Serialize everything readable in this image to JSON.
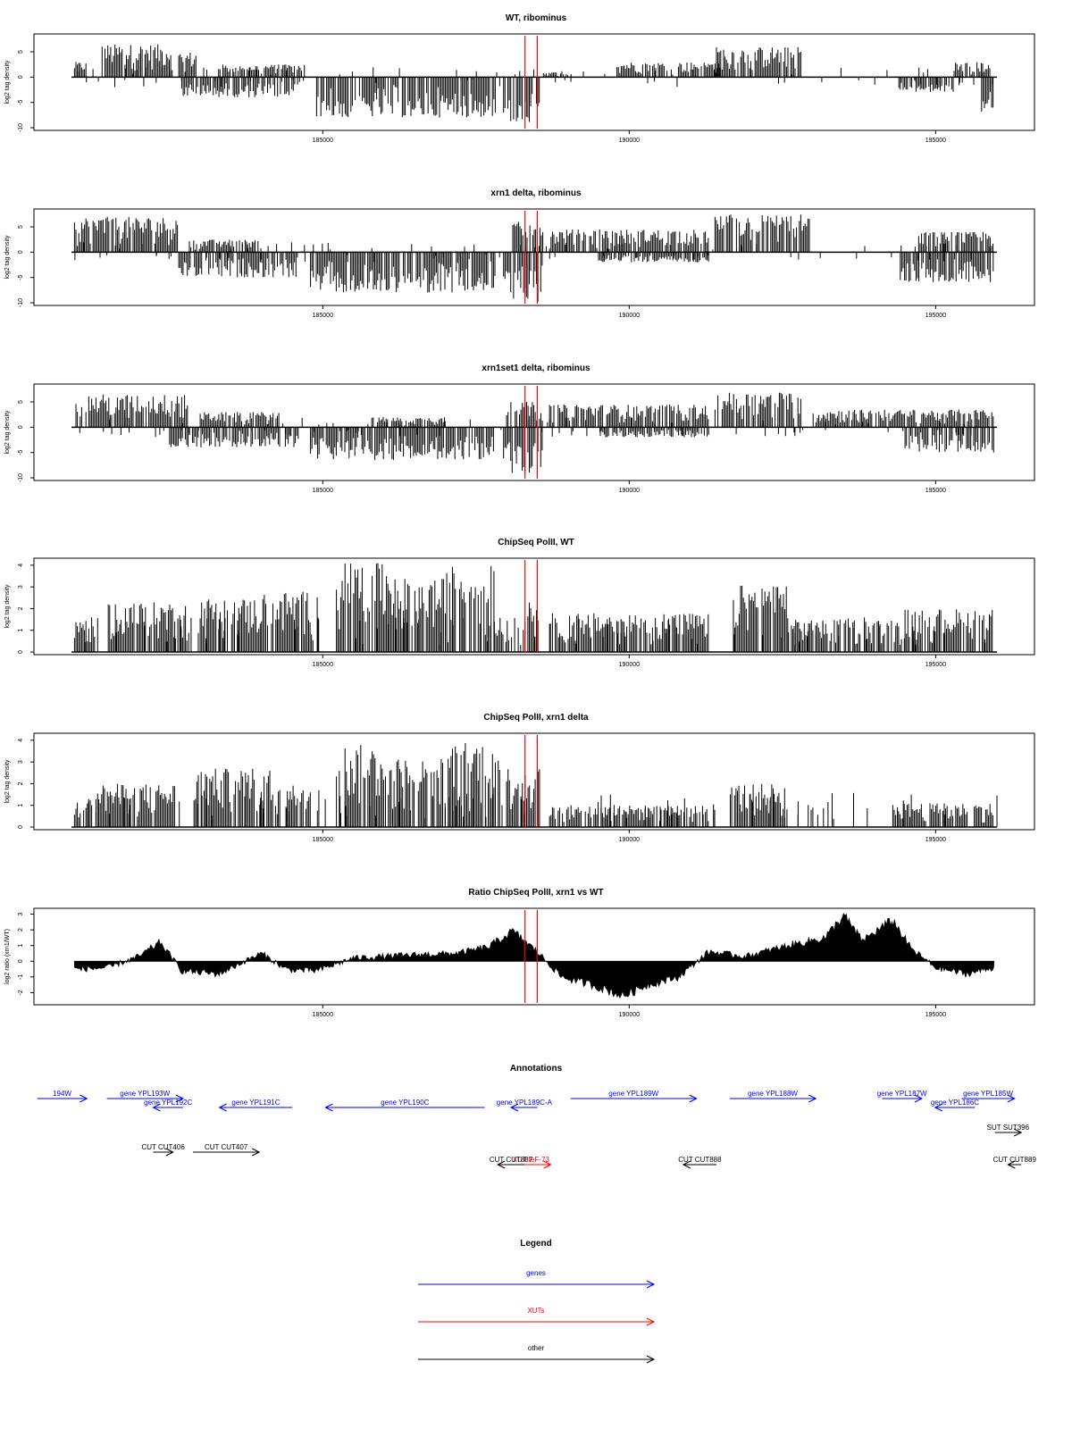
{
  "chart_data": [
    {
      "type": "bar",
      "title": "WT, ribominus",
      "ylabel": "log2 tag density",
      "xlabel": "",
      "xlim": [
        180900,
        196000
      ],
      "ylim": [
        -10,
        8
      ],
      "x_ticks": [
        185000,
        190000,
        195000
      ],
      "y_ticks": [
        -10,
        -5,
        0,
        5
      ],
      "grid": false,
      "markers": [
        188300,
        188500
      ],
      "regions": [
        {
          "from": 180950,
          "to": 181150,
          "peak": 3
        },
        {
          "from": 181400,
          "to": 182550,
          "peak": 6.5
        },
        {
          "from": 182650,
          "to": 182950,
          "peak": 5
        },
        {
          "from": 183300,
          "to": 184700,
          "peak": 2.5
        },
        {
          "from": 182700,
          "to": 184600,
          "peak": -4
        },
        {
          "from": 184900,
          "to": 187850,
          "peak": -8
        },
        {
          "from": 187950,
          "to": 188550,
          "peak": -9
        },
        {
          "from": 188600,
          "to": 189000,
          "peak": 1
        },
        {
          "from": 189800,
          "to": 191500,
          "peak": 3
        },
        {
          "from": 191400,
          "to": 192800,
          "peak": 6
        },
        {
          "from": 194400,
          "to": 195300,
          "peak": -3
        },
        {
          "from": 195300,
          "to": 195900,
          "peak": 3
        },
        {
          "from": 195750,
          "to": 195950,
          "peak": -7
        }
      ]
    },
    {
      "type": "bar",
      "title": "xrn1 delta, ribominus",
      "ylabel": "log2 tag density",
      "xlabel": "",
      "xlim": [
        180900,
        196000
      ],
      "ylim": [
        -10,
        8
      ],
      "x_ticks": [
        185000,
        190000,
        195000
      ],
      "y_ticks": [
        -10,
        -5,
        0,
        5
      ],
      "grid": false,
      "markers": [
        188300,
        188500
      ],
      "regions": [
        {
          "from": 180950,
          "to": 182650,
          "peak": 7
        },
        {
          "from": 182650,
          "to": 184600,
          "peak": -5
        },
        {
          "from": 182800,
          "to": 184000,
          "peak": 2.5
        },
        {
          "from": 184800,
          "to": 187850,
          "peak": -8
        },
        {
          "from": 187950,
          "to": 188600,
          "peak": -10
        },
        {
          "from": 188100,
          "to": 188600,
          "peak": 6
        },
        {
          "from": 188700,
          "to": 191300,
          "peak": 4.5
        },
        {
          "from": 189500,
          "to": 191300,
          "peak": -2
        },
        {
          "from": 191400,
          "to": 192950,
          "peak": 7.5
        },
        {
          "from": 194400,
          "to": 195950,
          "peak": -6
        },
        {
          "from": 194700,
          "to": 195950,
          "peak": 4
        }
      ]
    },
    {
      "type": "bar",
      "title": "xrn1set1 delta, ribominus",
      "ylabel": "log2 tag density",
      "xlabel": "",
      "xlim": [
        180900,
        196000
      ],
      "ylim": [
        -10,
        8
      ],
      "x_ticks": [
        185000,
        190000,
        195000
      ],
      "y_ticks": [
        -10,
        -5,
        0,
        5
      ],
      "grid": false,
      "markers": [
        188300,
        188500
      ],
      "regions": [
        {
          "from": 180950,
          "to": 182800,
          "peak": 6.5
        },
        {
          "from": 182500,
          "to": 184600,
          "peak": -4
        },
        {
          "from": 183000,
          "to": 184300,
          "peak": 3
        },
        {
          "from": 184800,
          "to": 187800,
          "peak": -6.5
        },
        {
          "from": 185800,
          "to": 187000,
          "peak": 2
        },
        {
          "from": 187950,
          "to": 188600,
          "peak": -9.5
        },
        {
          "from": 188000,
          "to": 188600,
          "peak": 5
        },
        {
          "from": 188700,
          "to": 191300,
          "peak": 4.5
        },
        {
          "from": 189500,
          "to": 191300,
          "peak": -2
        },
        {
          "from": 191400,
          "to": 192800,
          "peak": 7
        },
        {
          "from": 193000,
          "to": 195950,
          "peak": 3.5
        },
        {
          "from": 194500,
          "to": 195950,
          "peak": -5
        }
      ]
    },
    {
      "type": "bar",
      "title": "ChipSeq PolII, WT",
      "ylabel": "log2 tag density",
      "xlabel": "",
      "xlim": [
        180900,
        196000
      ],
      "ylim": [
        0,
        4.2
      ],
      "x_ticks": [
        185000,
        190000,
        195000
      ],
      "y_ticks": [
        0,
        1,
        2,
        3,
        4
      ],
      "grid": false,
      "markers": [
        188300,
        188500
      ],
      "regions": [
        {
          "from": 180950,
          "to": 181300,
          "peak": 1.6
        },
        {
          "from": 181500,
          "to": 182800,
          "peak": 2.3
        },
        {
          "from": 183000,
          "to": 184000,
          "peak": 2.5
        },
        {
          "from": 184000,
          "to": 184950,
          "peak": 2.8
        },
        {
          "from": 185200,
          "to": 186200,
          "peak": 4.1
        },
        {
          "from": 186200,
          "to": 187000,
          "peak": 3.4
        },
        {
          "from": 187000,
          "to": 187800,
          "peak": 4.0
        },
        {
          "from": 187800,
          "to": 188100,
          "peak": 1.6
        },
        {
          "from": 188300,
          "to": 188550,
          "peak": 2.6
        },
        {
          "from": 188700,
          "to": 191300,
          "peak": 1.8
        },
        {
          "from": 191700,
          "to": 192600,
          "peak": 3.1
        },
        {
          "from": 192600,
          "to": 194500,
          "peak": 1.5
        },
        {
          "from": 194500,
          "to": 195950,
          "peak": 2.0
        }
      ]
    },
    {
      "type": "bar",
      "title": "ChipSeq PolII, xrn1 delta",
      "ylabel": "log2 tag density",
      "xlabel": "",
      "xlim": [
        180900,
        196000
      ],
      "ylim": [
        0,
        4.2
      ],
      "x_ticks": [
        185000,
        190000,
        195000
      ],
      "y_ticks": [
        0,
        1,
        2,
        3,
        4
      ],
      "grid": false,
      "markers": [
        188300,
        188500
      ],
      "regions": [
        {
          "from": 180950,
          "to": 181300,
          "peak": 1.3
        },
        {
          "from": 181300,
          "to": 182600,
          "peak": 2.0
        },
        {
          "from": 182900,
          "to": 184300,
          "peak": 2.7
        },
        {
          "from": 184400,
          "to": 184950,
          "peak": 2.0
        },
        {
          "from": 185200,
          "to": 186000,
          "peak": 3.8
        },
        {
          "from": 186000,
          "to": 187000,
          "peak": 3.2
        },
        {
          "from": 187000,
          "to": 187900,
          "peak": 4.0
        },
        {
          "from": 188000,
          "to": 188550,
          "peak": 2.8
        },
        {
          "from": 188700,
          "to": 191300,
          "peak": 1.0
        },
        {
          "from": 191650,
          "to": 192550,
          "peak": 2.0
        },
        {
          "from": 194300,
          "to": 195950,
          "peak": 1.1
        }
      ]
    },
    {
      "type": "area",
      "title": "Ratio ChipSeq PolII, xrn1 vs WT",
      "ylabel": "log2 ratio (xrn1/WT)",
      "xlabel": "",
      "xlim": [
        180900,
        196000
      ],
      "ylim": [
        -2.6,
        3.2
      ],
      "x_ticks": [
        185000,
        190000,
        195000
      ],
      "y_ticks": [
        -2,
        -1,
        0,
        1,
        2,
        3
      ],
      "grid": false,
      "markers": [
        188300,
        188500
      ],
      "x": [
        180950,
        181500,
        182000,
        182350,
        182700,
        183300,
        184000,
        184400,
        184900,
        185500,
        186500,
        187200,
        187700,
        188100,
        188500,
        188900,
        189400,
        189900,
        190300,
        190800,
        191300,
        191900,
        192600,
        193200,
        193500,
        193800,
        194300,
        194600,
        195000,
        195500,
        195950
      ],
      "y": [
        -0.5,
        -0.4,
        0.3,
        1.2,
        -0.6,
        -0.8,
        0.5,
        -0.5,
        -0.6,
        0.2,
        0.4,
        0.5,
        0.9,
        1.9,
        0.6,
        -1.0,
        -1.5,
        -2.2,
        -1.5,
        -1.0,
        0.6,
        0.3,
        1.0,
        1.5,
        2.9,
        1.3,
        2.6,
        0.8,
        -0.4,
        -0.8,
        -0.4
      ]
    }
  ],
  "annotations": {
    "title": "Annotations",
    "genes": [
      {
        "label": "194W",
        "from": 180950,
        "to": 181700,
        "dir": 1,
        "row": 1
      },
      {
        "label": "gene YPL193W",
        "from": 182000,
        "to": 183150,
        "dir": 1,
        "row": 1
      },
      {
        "label": "gene YPL192C",
        "from": 182700,
        "to": 183150,
        "dir": -1,
        "row": 2
      },
      {
        "label": "gene YPL191C",
        "from": 183700,
        "to": 184800,
        "dir": -1,
        "row": 2
      },
      {
        "label": "gene YPL190C",
        "from": 185300,
        "to": 187700,
        "dir": -1,
        "row": 2
      },
      {
        "label": "gene YPL189C-A",
        "from": 188100,
        "to": 188500,
        "dir": -1,
        "row": 2
      },
      {
        "label": "gene YPL189W",
        "from": 189000,
        "to": 190900,
        "dir": 1,
        "row": 1
      },
      {
        "label": "gene YPL188W",
        "from": 191400,
        "to": 192700,
        "dir": 1,
        "row": 1
      },
      {
        "label": "gene YPL187W",
        "from": 193700,
        "to": 194300,
        "dir": 1,
        "row": 1
      },
      {
        "label": "gene YPL186C",
        "from": 194500,
        "to": 195100,
        "dir": -1,
        "row": 2
      },
      {
        "label": "gene YPL185W",
        "from": 194900,
        "to": 195700,
        "dir": 1,
        "row": 1
      }
    ],
    "xuts": [
      {
        "label": "XUT teF-73",
        "from": 188100,
        "to": 188700,
        "dir": 1,
        "row": 4
      }
    ],
    "other": [
      {
        "label": "CUT CUT406",
        "from": 182700,
        "to": 183000,
        "dir": 1,
        "row": 3
      },
      {
        "label": "CUT CUT407",
        "from": 183300,
        "to": 184300,
        "dir": 1,
        "row": 3
      },
      {
        "label": "CUT CUT887",
        "from": 187900,
        "to": 188300,
        "dir": -1,
        "row": 4
      },
      {
        "label": "CUT CUT888",
        "from": 190700,
        "to": 191200,
        "dir": -1,
        "row": 4
      },
      {
        "label": "SUT SUT396",
        "from": 195400,
        "to": 195800,
        "dir": 1,
        "row": 5
      },
      {
        "label": "CUT CUT889",
        "from": 195600,
        "to": 195800,
        "dir": -1,
        "row": 4
      }
    ]
  },
  "legend": {
    "title": "Legend",
    "items": [
      {
        "label": "genes",
        "color": "#0000ff"
      },
      {
        "label": "XUTs",
        "color": "#ff0000"
      },
      {
        "label": "other",
        "color": "#000000"
      }
    ]
  },
  "colors": {
    "data": "#000000",
    "marker": "#ff0000",
    "gene": "#0000ff",
    "xut": "#ff0000",
    "other": "#000000"
  }
}
